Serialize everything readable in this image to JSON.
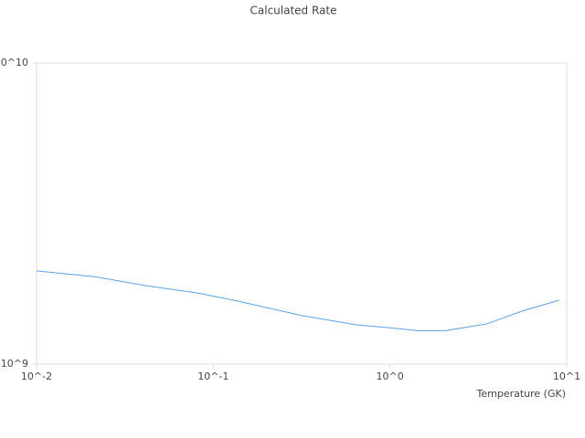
{
  "chart_data": {
    "type": "line",
    "title": "Calculated Rate",
    "x_label": "Temperature (GK)",
    "x": [
      0.01,
      0.0214,
      0.0418,
      0.0824,
      0.137,
      0.316,
      0.646,
      1.0,
      1.45,
      2.04,
      3.53,
      5.6,
      9.06
    ],
    "series": [
      {
        "color": "#5ba3e0",
        "values": [
          2040000000,
          1950000000,
          1820000000,
          1720000000,
          1620000000,
          1450000000,
          1350000000,
          1320000000,
          1290000000,
          1290000000,
          1360000000,
          1500000000,
          1630000000
        ]
      }
    ],
    "xscale": "log",
    "yscale": "log",
    "xlim": [
      0.01,
      10
    ],
    "ylim": [
      1000000000,
      10000000000
    ],
    "xticks": [
      {
        "value": 0.01,
        "label": "10^-2"
      },
      {
        "value": 0.1,
        "label": "10^-1"
      },
      {
        "value": 1,
        "label": "10^0"
      },
      {
        "value": 10,
        "label": "10^1"
      }
    ],
    "yticks": [
      {
        "value": 1000000000,
        "label": "10^9"
      },
      {
        "value": 10000000000,
        "label": "10^10"
      }
    ]
  }
}
